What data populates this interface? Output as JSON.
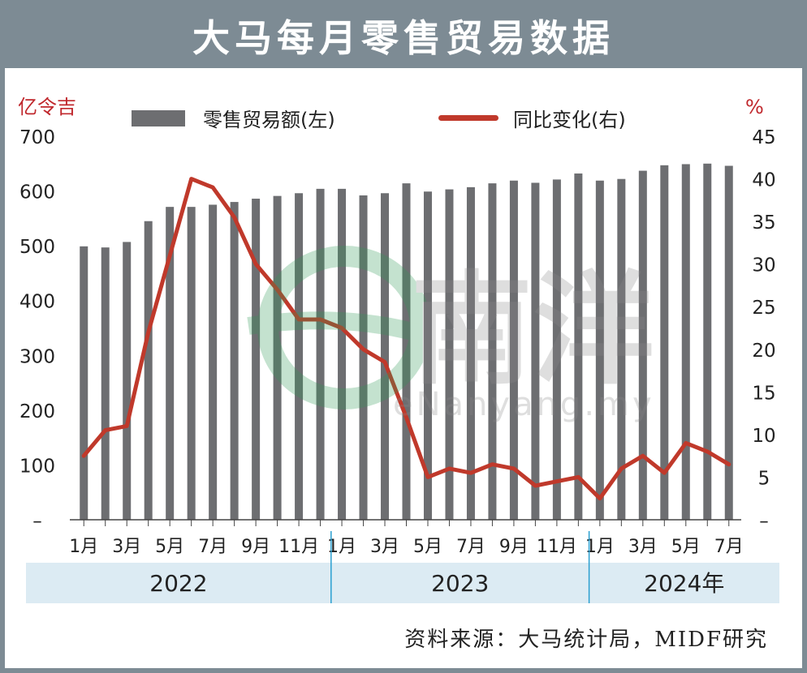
{
  "title": "大马每月零售贸易数据",
  "left_unit": "亿令吉",
  "right_unit": "%",
  "legend": {
    "bars": "零售贸易额(左)",
    "line": "同比变化(右)"
  },
  "source": "资料来源：大马统计局，MIDF研究",
  "watermark": {
    "logo_text": "南洋",
    "site_text": "eNanyang.my"
  },
  "colors": {
    "bar": "#6d6e71",
    "line": "#c0392b",
    "accent": "#c0282d",
    "year_band": "#dcebf3",
    "year_divider": "#2a9fd0",
    "frame": "#7d8b94"
  },
  "chart_data": {
    "type": "bar",
    "categories": [
      "1月",
      "2月",
      "3月",
      "4月",
      "5月",
      "6月",
      "7月",
      "8月",
      "9月",
      "10月",
      "11月",
      "12月",
      "1月",
      "2月",
      "3月",
      "4月",
      "5月",
      "6月",
      "7月",
      "8月",
      "9月",
      "10月",
      "11月",
      "12月",
      "1月",
      "2月",
      "3月",
      "4月",
      "5月",
      "6月",
      "7月"
    ],
    "x_tick_labels": [
      "1月",
      "",
      "3月",
      "",
      "5月",
      "",
      "7月",
      "",
      "9月",
      "",
      "11月",
      "",
      "1月",
      "",
      "3月",
      "",
      "5月",
      "",
      "7月",
      "",
      "9月",
      "",
      "11月",
      "",
      "1月",
      "",
      "3月",
      "",
      "5月",
      "",
      "7月"
    ],
    "years": [
      {
        "label": "2022",
        "start": 0,
        "count": 12
      },
      {
        "label": "2023",
        "start": 12,
        "count": 12
      },
      {
        "label": "2024年",
        "start": 24,
        "count": 7
      }
    ],
    "series": [
      {
        "name": "零售贸易额(左)",
        "type": "bar",
        "axis": "left",
        "values": [
          499,
          497,
          507,
          545,
          571,
          571,
          575,
          580,
          586,
          591,
          596,
          604,
          604,
          592,
          596,
          614,
          599,
          603,
          607,
          614,
          619,
          615,
          621,
          632,
          619,
          622,
          637,
          647,
          649,
          650,
          646
        ]
      },
      {
        "name": "同比变化(右)",
        "type": "line",
        "axis": "right",
        "values": [
          7.5,
          10.5,
          11,
          22,
          31,
          40,
          39,
          35.5,
          30,
          27,
          23.5,
          23.5,
          22.5,
          20,
          18.5,
          12,
          5,
          6,
          5.5,
          6.5,
          6,
          4,
          4.5,
          5,
          2.5,
          6,
          7.5,
          5.5,
          9,
          8,
          6.5
        ]
      }
    ],
    "y_left": {
      "min": 0,
      "max": 700,
      "ticks": [
        "–",
        "100",
        "200",
        "300",
        "400",
        "500",
        "600",
        "700"
      ]
    },
    "y_right": {
      "min": 0,
      "max": 45,
      "ticks": [
        "–",
        "5",
        "10",
        "15",
        "20",
        "25",
        "30",
        "35",
        "40",
        "45"
      ]
    },
    "grid": false,
    "legend_position": "top"
  }
}
